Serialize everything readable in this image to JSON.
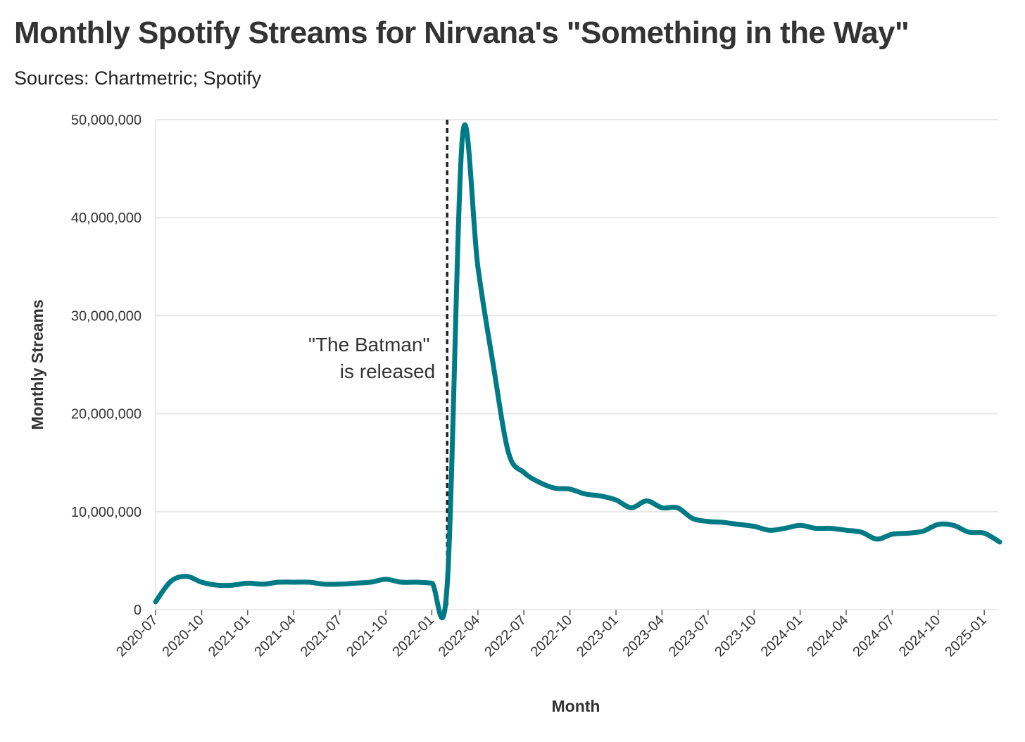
{
  "chart_data": {
    "type": "line",
    "title": "Monthly Spotify Streams for Nirvana's \"Something in the Way\"",
    "subtitle": "Sources: Chartmetric; Spotify",
    "xlabel": "Month",
    "ylabel": "Monthly Streams",
    "ylim": [
      0,
      50000000
    ],
    "y_ticks": [
      0,
      10000000,
      20000000,
      30000000,
      40000000,
      50000000
    ],
    "y_tick_labels": [
      "0",
      "10,000,000",
      "20,000,000",
      "30,000,000",
      "40,000,000",
      "50,000,000"
    ],
    "x_tick_labels": [
      "2020-07",
      "2020-10",
      "2021-01",
      "2021-04",
      "2021-07",
      "2021-10",
      "2022-01",
      "2022-04",
      "2022-07",
      "2022-10",
      "2023-01",
      "2023-04",
      "2023-07",
      "2023-10",
      "2024-01",
      "2024-04",
      "2024-07",
      "2024-10",
      "2025-01"
    ],
    "grid": "horizontal",
    "series": [
      {
        "color": "#007b85",
        "x": [
          "2020-07",
          "2020-08",
          "2020-09",
          "2020-10",
          "2020-11",
          "2020-12",
          "2021-01",
          "2021-02",
          "2021-03",
          "2021-04",
          "2021-05",
          "2021-06",
          "2021-07",
          "2021-08",
          "2021-09",
          "2021-10",
          "2021-11",
          "2021-12",
          "2022-01",
          "2022-02",
          "2022-03",
          "2022-04",
          "2022-05",
          "2022-06",
          "2022-07",
          "2022-08",
          "2022-09",
          "2022-10",
          "2022-11",
          "2022-12",
          "2023-01",
          "2023-02",
          "2023-03",
          "2023-04",
          "2023-05",
          "2023-06",
          "2023-07",
          "2023-08",
          "2023-09",
          "2023-10",
          "2023-11",
          "2023-12",
          "2024-01",
          "2024-02",
          "2024-03",
          "2024-04",
          "2024-05",
          "2024-06",
          "2024-07",
          "2024-08",
          "2024-09",
          "2024-10",
          "2024-11",
          "2024-12",
          "2025-01",
          "2025-02"
        ],
        "values": [
          800000,
          2900000,
          3400000,
          2800000,
          2500000,
          2500000,
          2700000,
          2600000,
          2800000,
          2800000,
          2800000,
          2600000,
          2600000,
          2700000,
          2800000,
          3100000,
          2800000,
          2800000,
          2700000,
          2500000,
          48300000,
          35000000,
          25000000,
          16000000,
          14000000,
          13000000,
          12400000,
          12300000,
          11800000,
          11600000,
          11200000,
          10400000,
          11100000,
          10400000,
          10400000,
          9300000,
          9000000,
          8900000,
          8700000,
          8500000,
          8100000,
          8300000,
          8600000,
          8300000,
          8300000,
          8100000,
          7900000,
          7200000,
          7700000,
          7800000,
          8000000,
          8700000,
          8600000,
          7900000,
          7800000,
          6900000
        ]
      }
    ],
    "annotation": {
      "x": "2022-02",
      "lines": [
        "\"The Batman\"",
        "is released"
      ]
    }
  }
}
